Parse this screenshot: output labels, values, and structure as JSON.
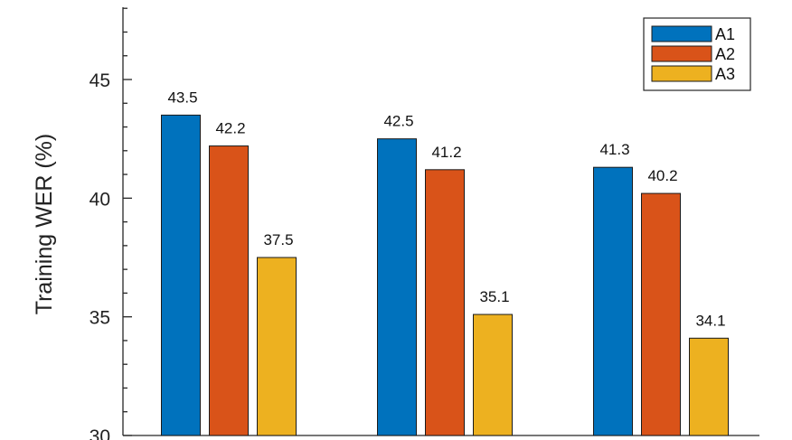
{
  "chart_data": {
    "type": "bar",
    "title": "",
    "xlabel": "",
    "ylabel": "Training WER (%)",
    "ylim": [
      30,
      48
    ],
    "yticks": [
      30,
      35,
      40,
      45
    ],
    "grid": false,
    "legend_position": "top-right",
    "categories": [
      "",
      "",
      ""
    ],
    "series": [
      {
        "name": "A1",
        "color": "#0072BD",
        "values": [
          43.5,
          42.5,
          41.3
        ]
      },
      {
        "name": "A2",
        "color": "#D95319",
        "values": [
          42.2,
          41.2,
          40.2
        ]
      },
      {
        "name": "A3",
        "color": "#EDB120",
        "values": [
          37.5,
          35.1,
          34.1
        ]
      }
    ]
  }
}
